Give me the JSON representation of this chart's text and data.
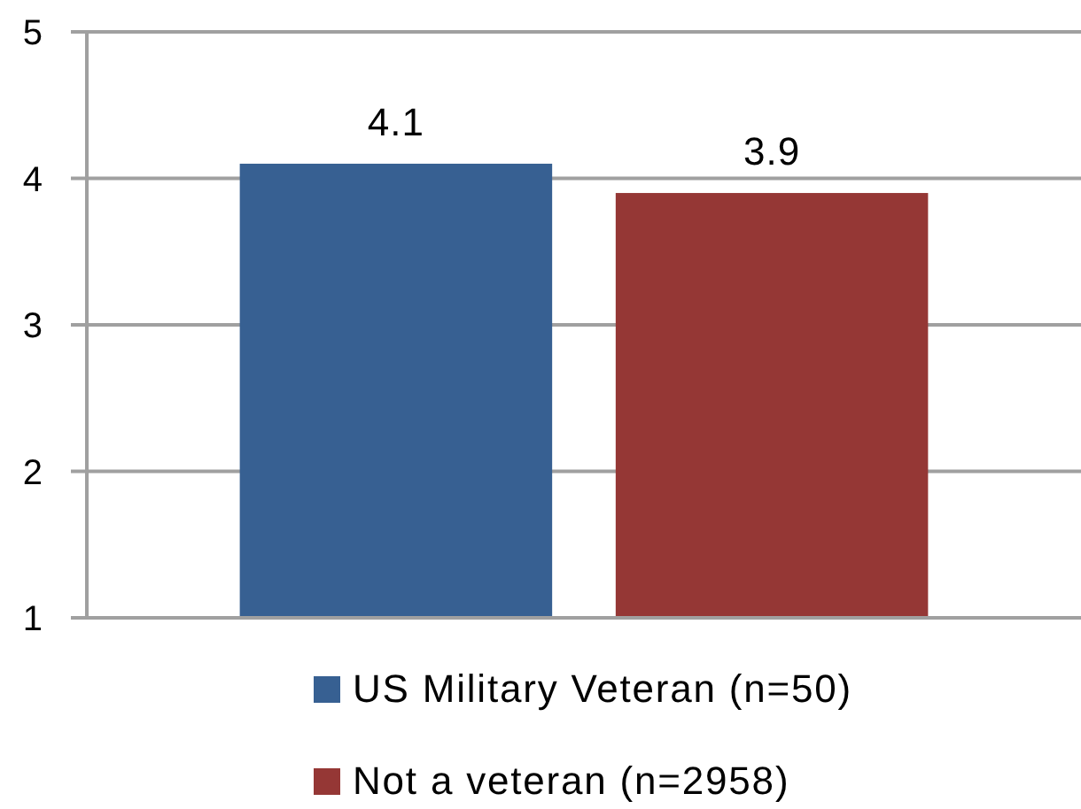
{
  "chart_data": {
    "type": "bar",
    "categories": [
      null
    ],
    "series": [
      {
        "name": "US Military Veteran (n=50)",
        "color": "#376092",
        "values": [
          4.1
        ]
      },
      {
        "name": "Not a veteran (n=2958)",
        "color": "#953735",
        "values": [
          3.9
        ]
      }
    ],
    "ylim": [
      1,
      5
    ],
    "yticks": [
      1,
      2,
      3,
      4,
      5
    ],
    "grid": "y",
    "legend": "bottom",
    "data_labels": true
  }
}
